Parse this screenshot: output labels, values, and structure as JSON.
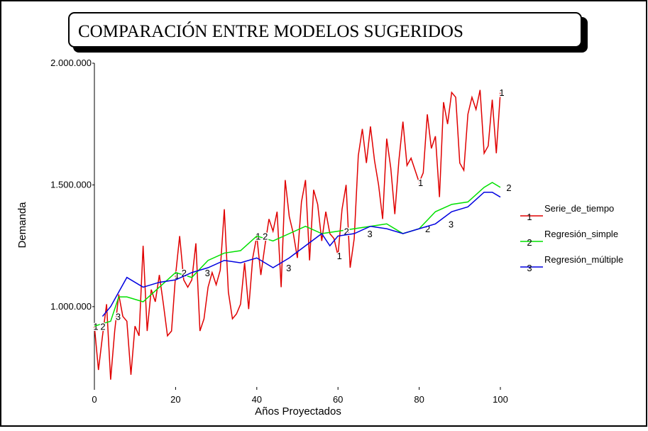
{
  "chart_data": {
    "type": "line",
    "title": "COMPARACIÓN ENTRE MODELOS SUGERIDOS",
    "xlabel": "Años Proyectados",
    "ylabel": "Demanda",
    "xlim": [
      0,
      100
    ],
    "xticks": [
      0,
      20,
      40,
      60,
      80,
      100
    ],
    "ylim": [
      670000,
      2000000
    ],
    "yticks": [
      {
        "value": 1000000,
        "label": "1.000.000"
      },
      {
        "value": 1500000,
        "label": "1.500.000"
      },
      {
        "value": 2000000,
        "label": "2.000.000"
      }
    ],
    "legend": "right",
    "series": [
      {
        "name": "Serie_de_tiempo",
        "marker": "1",
        "color": "#e00000",
        "x": [
          0,
          1,
          2,
          3,
          4,
          5,
          6,
          7,
          8,
          9,
          10,
          11,
          12,
          13,
          14,
          15,
          16,
          17,
          18,
          19,
          20,
          21,
          22,
          23,
          24,
          25,
          26,
          27,
          28,
          29,
          30,
          31,
          32,
          33,
          34,
          35,
          36,
          37,
          38,
          39,
          40,
          41,
          42,
          43,
          44,
          45,
          46,
          47,
          48,
          49,
          50,
          51,
          52,
          53,
          54,
          55,
          56,
          57,
          58,
          59,
          60,
          61,
          62,
          63,
          64,
          65,
          66,
          67,
          68,
          69,
          70,
          71,
          72,
          73,
          74,
          75,
          76,
          77,
          78,
          79,
          80,
          81,
          82,
          83,
          84,
          85,
          86,
          87,
          88,
          89,
          90,
          91,
          92,
          93,
          94,
          95,
          96,
          97,
          98,
          99,
          100
        ],
        "values": [
          920000,
          740000,
          880000,
          1010000,
          700000,
          900000,
          1050000,
          960000,
          940000,
          720000,
          920000,
          880000,
          1250000,
          900000,
          1070000,
          1020000,
          1130000,
          1010000,
          880000,
          900000,
          1130000,
          1290000,
          1110000,
          1080000,
          1110000,
          1260000,
          900000,
          950000,
          1080000,
          1140000,
          1090000,
          1150000,
          1400000,
          1060000,
          950000,
          970000,
          1010000,
          1180000,
          990000,
          1200000,
          1290000,
          1130000,
          1250000,
          1360000,
          1310000,
          1390000,
          1080000,
          1520000,
          1370000,
          1300000,
          1200000,
          1430000,
          1520000,
          1190000,
          1480000,
          1420000,
          1270000,
          1390000,
          1300000,
          1280000,
          1210000,
          1400000,
          1500000,
          1160000,
          1280000,
          1620000,
          1730000,
          1590000,
          1740000,
          1600000,
          1500000,
          1360000,
          1690000,
          1570000,
          1380000,
          1600000,
          1760000,
          1580000,
          1610000,
          1560000,
          1510000,
          1550000,
          1790000,
          1650000,
          1700000,
          1450000,
          1840000,
          1750000,
          1880000,
          1860000,
          1590000,
          1560000,
          1790000,
          1860000,
          1810000,
          1890000,
          1630000,
          1660000,
          1850000,
          1630000,
          1880000
        ]
      },
      {
        "name": "Regresión_simple",
        "marker": "2",
        "color": "#00e000",
        "x": [
          0,
          4,
          6,
          8,
          12,
          16,
          20,
          24,
          28,
          32,
          36,
          40,
          44,
          48,
          52,
          56,
          60,
          64,
          68,
          72,
          76,
          80,
          84,
          88,
          92,
          96,
          98,
          100
        ],
        "values": [
          920000,
          940000,
          1040000,
          1040000,
          1020000,
          1080000,
          1140000,
          1120000,
          1190000,
          1220000,
          1230000,
          1290000,
          1270000,
          1300000,
          1330000,
          1300000,
          1310000,
          1320000,
          1330000,
          1340000,
          1300000,
          1320000,
          1390000,
          1420000,
          1430000,
          1490000,
          1510000,
          1490000
        ]
      },
      {
        "name": "Regresión_múltiple",
        "marker": "3",
        "color": "#0000e0",
        "x": [
          2,
          4,
          6,
          8,
          12,
          16,
          20,
          24,
          28,
          32,
          36,
          40,
          44,
          48,
          52,
          56,
          58,
          60,
          64,
          68,
          72,
          76,
          80,
          84,
          88,
          92,
          96,
          98,
          100
        ],
        "values": [
          960000,
          1000000,
          1060000,
          1120000,
          1080000,
          1100000,
          1110000,
          1140000,
          1160000,
          1190000,
          1180000,
          1200000,
          1160000,
          1200000,
          1250000,
          1300000,
          1250000,
          1290000,
          1300000,
          1330000,
          1320000,
          1300000,
          1320000,
          1340000,
          1390000,
          1410000,
          1470000,
          1470000,
          1450000
        ]
      }
    ]
  }
}
